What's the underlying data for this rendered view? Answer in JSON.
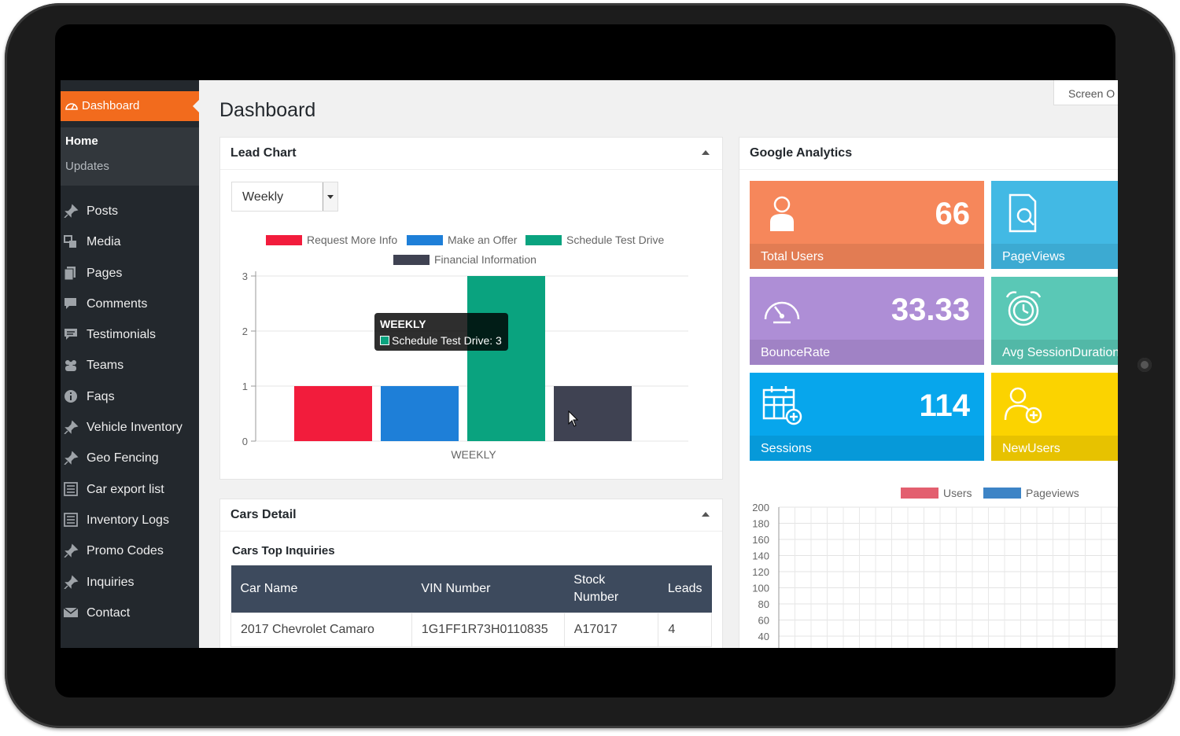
{
  "sidebar": {
    "active": {
      "label": "Dashboard",
      "icon": "dashboard-icon"
    },
    "submenu": {
      "home": "Home",
      "updates": "Updates"
    },
    "items": [
      {
        "label": "Posts",
        "icon": "pin-icon"
      },
      {
        "label": "Media",
        "icon": "media-icon"
      },
      {
        "label": "Pages",
        "icon": "pages-icon"
      },
      {
        "label": "Comments",
        "icon": "comment-icon"
      },
      {
        "label": "Testimonials",
        "icon": "testimonial-icon"
      },
      {
        "label": "Teams",
        "icon": "teams-icon"
      },
      {
        "label": "Faqs",
        "icon": "info-icon"
      },
      {
        "label": "Vehicle Inventory",
        "icon": "pin-icon"
      },
      {
        "label": "Geo Fencing",
        "icon": "pin-icon"
      },
      {
        "label": "Car export list",
        "icon": "list-icon"
      },
      {
        "label": "Inventory Logs",
        "icon": "list-icon"
      },
      {
        "label": "Promo Codes",
        "icon": "pin-icon"
      },
      {
        "label": "Inquiries",
        "icon": "pin-icon"
      },
      {
        "label": "Contact",
        "icon": "mail-icon"
      }
    ]
  },
  "header": {
    "title": "Dashboard",
    "screen_options": "Screen O"
  },
  "lead_chart": {
    "title": "Lead Chart",
    "select_value": "Weekly",
    "tooltip": {
      "title": "WEEKLY",
      "body": "Schedule Test Drive: 3"
    },
    "chart_data": {
      "type": "bar",
      "categories": [
        "WEEKLY"
      ],
      "series": [
        {
          "name": "Request More Info",
          "values": [
            1
          ],
          "color": "#f21c3c"
        },
        {
          "name": "Make an Offer",
          "values": [
            1
          ],
          "color": "#1e7fd8"
        },
        {
          "name": "Schedule Test Drive",
          "values": [
            3
          ],
          "color": "#0aa37f"
        },
        {
          "name": "Financial Information",
          "values": [
            1
          ],
          "color": "#3f4252"
        }
      ],
      "ylim": [
        0,
        3
      ],
      "yticks": [
        "0",
        "1",
        "2",
        "3"
      ],
      "xlabel": "WEEKLY",
      "legend": "top",
      "grid": true
    }
  },
  "cars_detail": {
    "title": "Cars Detail",
    "subtitle": "Cars Top Inquiries",
    "columns": [
      "Car Name",
      "VIN Number",
      "Stock Number",
      "Leads"
    ],
    "rows": [
      {
        "car_name": "2017 Chevrolet Camaro",
        "vin": "1G1FF1R73H0110835",
        "stock": "A17017",
        "leads": "4"
      }
    ]
  },
  "analytics": {
    "title": "Google Analytics",
    "tiles": [
      {
        "label": "Total Users",
        "value": "66",
        "color": "#f6875b",
        "icon": "user-icon"
      },
      {
        "label": "PageViews",
        "value": "",
        "color": "#42b9e4",
        "icon": "document-search-icon"
      },
      {
        "label": "BounceRate",
        "value": "33.33",
        "color": "#ae8ed6",
        "icon": "speedometer-icon"
      },
      {
        "label": "Avg SessionDuration",
        "value": "",
        "color": "#5ac8b6",
        "icon": "alarm-clock-icon"
      },
      {
        "label": "Sessions",
        "value": "114",
        "color": "#07a6ec",
        "icon": "calendar-add-icon"
      },
      {
        "label": "NewUsers",
        "value": "",
        "color": "#fbd300",
        "icon": "add-user-icon"
      }
    ],
    "chart_data": {
      "type": "line",
      "series": [
        {
          "name": "Users",
          "color": "#e35f6f"
        },
        {
          "name": "Pageviews",
          "color": "#3d84c6"
        }
      ],
      "yticks": [
        "200",
        "180",
        "160",
        "140",
        "120",
        "100",
        "80",
        "60",
        "40"
      ],
      "ylim": [
        0,
        200
      ],
      "legend": "top",
      "grid": true
    }
  }
}
